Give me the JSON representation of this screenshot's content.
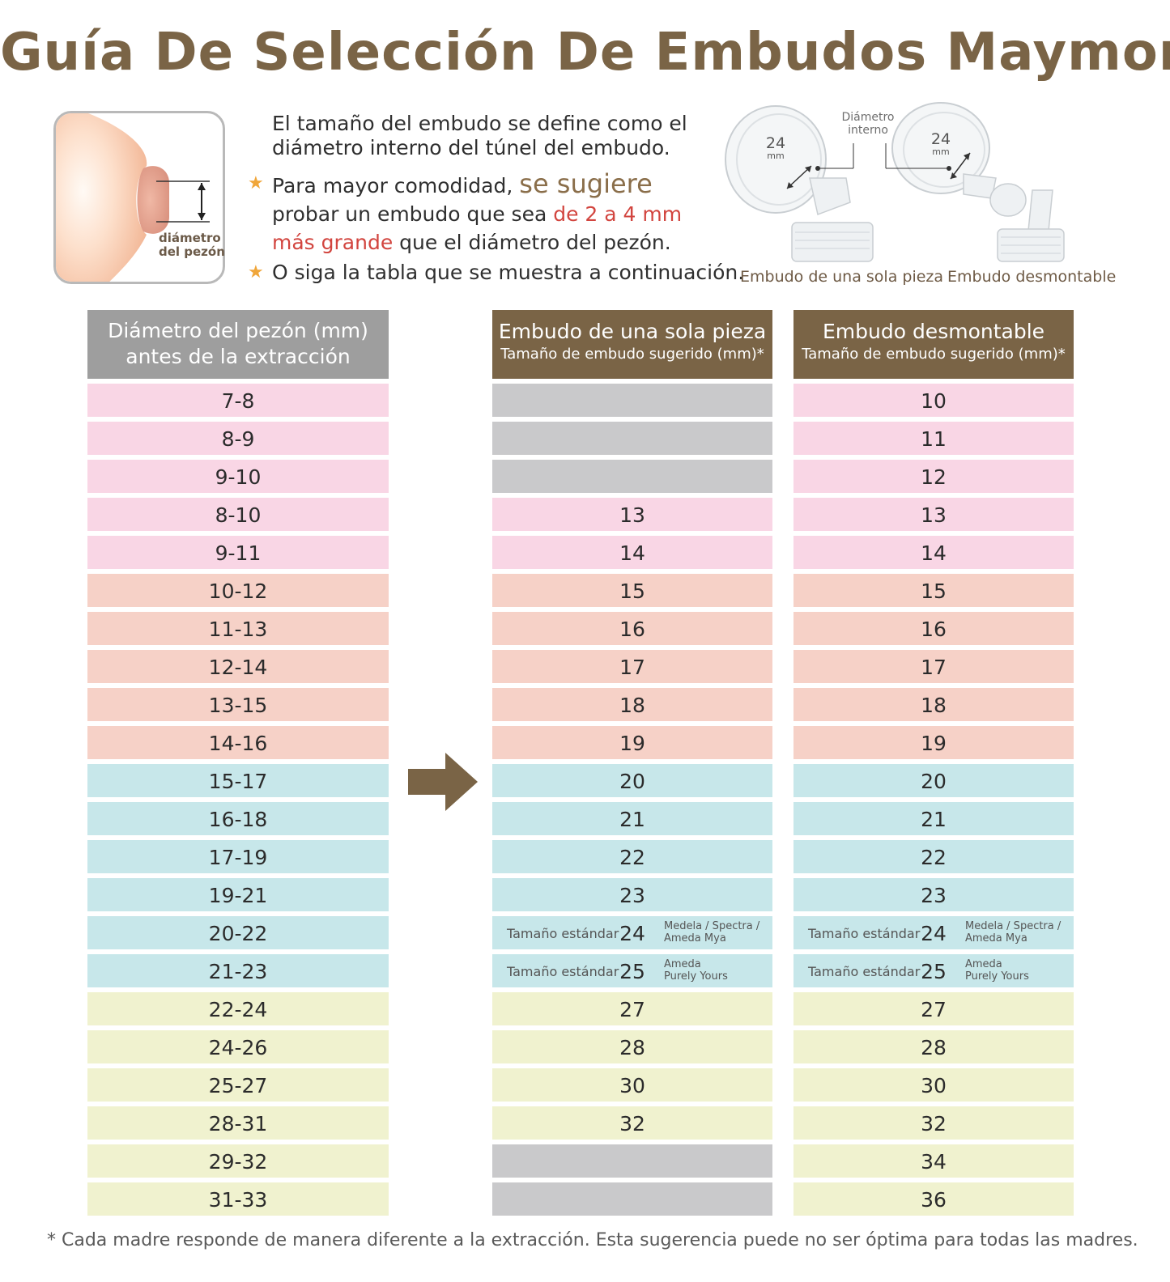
{
  "title": "Guía De Selección De Embudos Maymom",
  "illustration": {
    "label_line1": "diámetro",
    "label_line2": "del pezón"
  },
  "intro": {
    "line1": "El tamaño del embudo se define como el",
    "line2": "diámetro interno del túnel del embudo.",
    "tip1_a": "Para mayor comodidad, ",
    "tip1_b": "se sugiere",
    "tip1_c": "probar un embudo que sea ",
    "tip1_d": "de 2 a 4 mm",
    "tip1_e": "más grande",
    "tip1_f": " que el diámetro del pezón.",
    "tip2": "O siga la tabla que se muestra a continuación."
  },
  "products": {
    "diameter_label_1": "Diámetro",
    "diameter_label_2": "interno",
    "size_value": "24",
    "size_unit": "mm",
    "one_piece_caption": "Embudo de una sola pieza",
    "detachable_caption": "Embudo desmontable"
  },
  "table": {
    "nipple_header_1": "Diámetro del pezón (mm)",
    "nipple_header_2": "antes de la extracción",
    "one_piece_header": "Embudo de una sola pieza",
    "one_piece_sub": "Tamaño de embudo sugerido (mm)*",
    "detachable_header": "Embudo desmontable",
    "detachable_sub": "Tamaño de embudo sugerido (mm)*",
    "standard_label": "Tamaño estándar",
    "brand_24_1": "Medela / Spectra /",
    "brand_24_2": "Ameda Mya",
    "brand_25_1": "Ameda",
    "brand_25_2": "Purely Yours",
    "rows": [
      {
        "nipple": "7-8",
        "one_piece": "",
        "detachable": "10",
        "group": "pink"
      },
      {
        "nipple": "8-9",
        "one_piece": "",
        "detachable": "11",
        "group": "pink"
      },
      {
        "nipple": "9-10",
        "one_piece": "",
        "detachable": "12",
        "group": "pink"
      },
      {
        "nipple": "8-10",
        "one_piece": "13",
        "detachable": "13",
        "group": "pink"
      },
      {
        "nipple": "9-11",
        "one_piece": "14",
        "detachable": "14",
        "group": "pink"
      },
      {
        "nipple": "10-12",
        "one_piece": "15",
        "detachable": "15",
        "group": "salmon"
      },
      {
        "nipple": "11-13",
        "one_piece": "16",
        "detachable": "16",
        "group": "salmon"
      },
      {
        "nipple": "12-14",
        "one_piece": "17",
        "detachable": "17",
        "group": "salmon"
      },
      {
        "nipple": "13-15",
        "one_piece": "18",
        "detachable": "18",
        "group": "salmon"
      },
      {
        "nipple": "14-16",
        "one_piece": "19",
        "detachable": "19",
        "group": "salmon"
      },
      {
        "nipple": "15-17",
        "one_piece": "20",
        "detachable": "20",
        "group": "blue"
      },
      {
        "nipple": "16-18",
        "one_piece": "21",
        "detachable": "21",
        "group": "blue"
      },
      {
        "nipple": "17-19",
        "one_piece": "22",
        "detachable": "22",
        "group": "blue"
      },
      {
        "nipple": "19-21",
        "one_piece": "23",
        "detachable": "23",
        "group": "blue"
      },
      {
        "nipple": "20-22",
        "one_piece": "24",
        "detachable": "24",
        "group": "blue",
        "standard": true,
        "brand": "24"
      },
      {
        "nipple": "21-23",
        "one_piece": "25",
        "detachable": "25",
        "group": "blue",
        "standard": true,
        "brand": "25"
      },
      {
        "nipple": "22-24",
        "one_piece": "27",
        "detachable": "27",
        "group": "yellow"
      },
      {
        "nipple": "24-26",
        "one_piece": "28",
        "detachable": "28",
        "group": "yellow"
      },
      {
        "nipple": "25-27",
        "one_piece": "30",
        "detachable": "30",
        "group": "yellow"
      },
      {
        "nipple": "28-31",
        "one_piece": "32",
        "detachable": "32",
        "group": "yellow"
      },
      {
        "nipple": "29-32",
        "one_piece": "",
        "detachable": "34",
        "group": "yellow"
      },
      {
        "nipple": "31-33",
        "one_piece": "",
        "detachable": "36",
        "group": "yellow"
      }
    ]
  },
  "colors": {
    "title_brown": "#7a6446",
    "header_gray": "#9e9e9e",
    "pink": "#f9d6e5",
    "salmon": "#f6d1c7",
    "blue": "#c7e7ea",
    "yellow": "#f0f2cf",
    "empty_gray": "#c9c9cb",
    "accent_red": "#d2453f"
  },
  "footnote": "* Cada madre responde de manera diferente a la extracción. Esta sugerencia puede no ser óptima para todas las madres."
}
